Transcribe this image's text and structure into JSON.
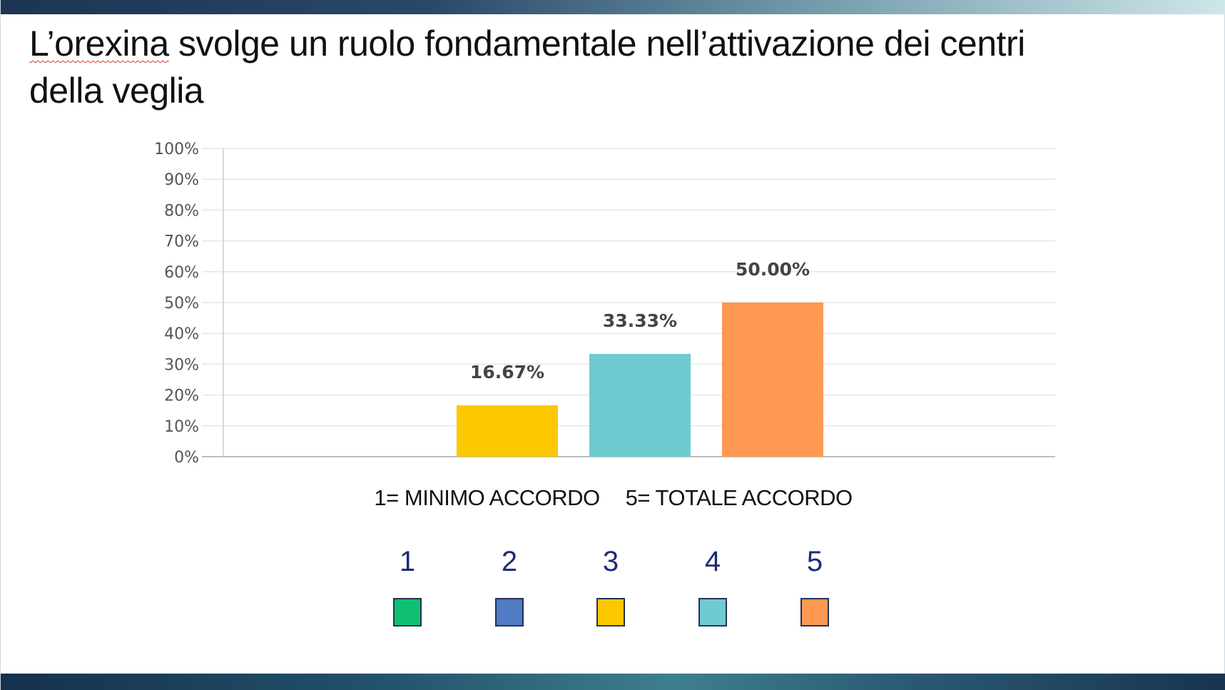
{
  "slide": {
    "title_part1": "L’orexina",
    "title_part2": " svolge un ruolo fondamentale nell’attivazione dei centri della veglia"
  },
  "chart_data": {
    "type": "bar",
    "categories": [
      "1",
      "2",
      "3",
      "4",
      "5"
    ],
    "values": [
      0,
      0,
      16.67,
      33.33,
      50.0
    ],
    "data_labels": [
      "",
      "",
      "16.67%",
      "33.33%",
      "50.00%"
    ],
    "colors": [
      "#10c070",
      "#4f7cc2",
      "#fcc800",
      "#6ecbd0",
      "#ff9850"
    ],
    "ylim": [
      0,
      100
    ],
    "yticks": [
      "0%",
      "10%",
      "20%",
      "30%",
      "40%",
      "50%",
      "60%",
      "70%",
      "80%",
      "90%",
      "100%"
    ],
    "grid": true,
    "xlabel": "",
    "ylabel": ""
  },
  "scale": {
    "min_label": "1= MINIMO ACCORDO",
    "max_label": "5= TOTALE ACCORDO"
  },
  "legend": {
    "items": [
      {
        "label": "1",
        "color": "#10c070"
      },
      {
        "label": "2",
        "color": "#4f7cc2"
      },
      {
        "label": "3",
        "color": "#fcc800"
      },
      {
        "label": "4",
        "color": "#6ecbd0"
      },
      {
        "label": "5",
        "color": "#ff9850"
      }
    ]
  }
}
